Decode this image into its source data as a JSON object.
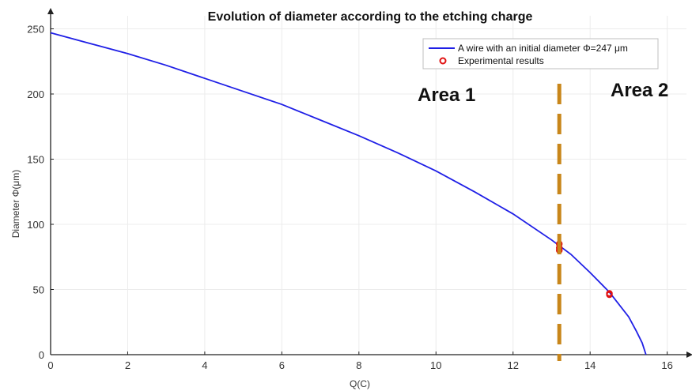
{
  "chart_data": {
    "type": "line",
    "title": "Evolution of diameter according to the etching charge",
    "xlabel": "Q(C)",
    "ylabel": "Diameter Φ(μm)",
    "xlim": [
      0,
      16.5
    ],
    "ylim": [
      0,
      260
    ],
    "xticks": [
      0,
      2,
      4,
      6,
      8,
      10,
      12,
      14,
      16
    ],
    "yticks": [
      0,
      50,
      100,
      150,
      200,
      250
    ],
    "grid": true,
    "legend_position": "top-right",
    "series": [
      {
        "name": "A wire with an initial diameter Φ=247 μm",
        "kind": "line",
        "color": "#1f1fe6",
        "x": [
          0,
          1,
          2,
          3,
          4,
          5,
          6,
          7,
          8,
          9,
          10,
          11,
          12,
          13,
          13.5,
          14,
          14.5,
          15,
          15.2,
          15.35,
          15.45
        ],
        "y": [
          247,
          239,
          231,
          222,
          212,
          202,
          192,
          180,
          168,
          155,
          141,
          125,
          108,
          88,
          77,
          63,
          48,
          29,
          18,
          9,
          0
        ]
      },
      {
        "name": "Experimental results",
        "kind": "scatter",
        "color": "#e01010",
        "x": [
          13.2,
          13.2,
          13.2,
          14.5,
          14.5
        ],
        "y": [
          85,
          82,
          80,
          47,
          46
        ]
      }
    ],
    "annotations": {
      "divider_x": 13.2,
      "divider_color": "#c8861a",
      "area1_label": "Area 1",
      "area2_label": "Area 2"
    }
  }
}
